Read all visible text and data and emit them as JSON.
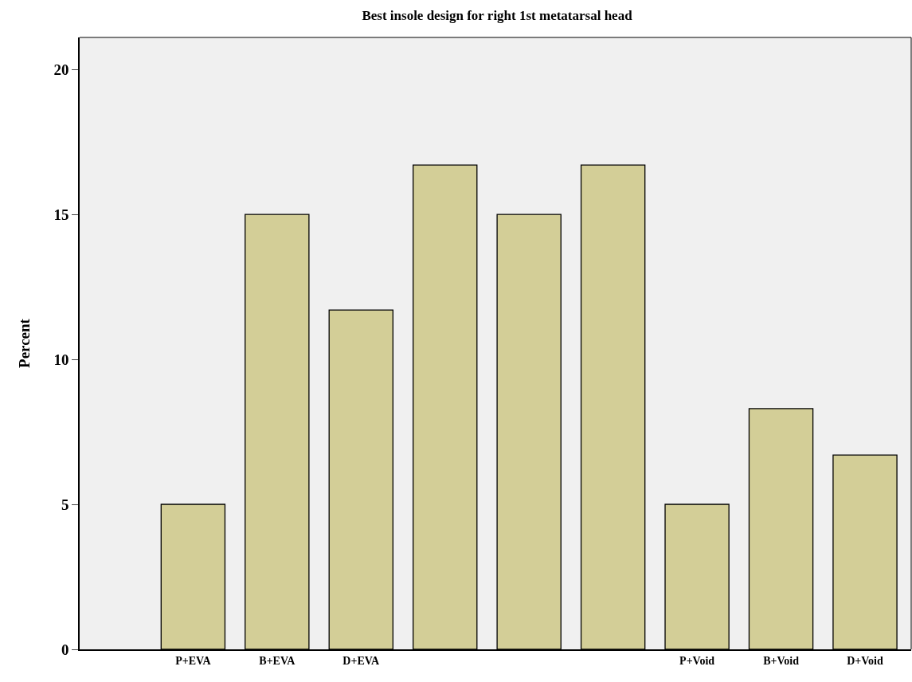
{
  "chart_data": {
    "type": "bar",
    "title": "Best insole design for right 1st metatarsal head",
    "ylabel": "Percent",
    "categories": [
      "P+EVA",
      "B+EVA",
      "D+EVA",
      null,
      null,
      null,
      "P+Void",
      "B+Void",
      "D+Void"
    ],
    "values": [
      5,
      15,
      11.7,
      16.7,
      15,
      16.7,
      5,
      8.3,
      6.7
    ],
    "color": "#d3ce97",
    "ylim": [
      0,
      21.1
    ],
    "yticks": [
      0,
      5,
      10,
      15,
      20
    ],
    "grid": false
  }
}
